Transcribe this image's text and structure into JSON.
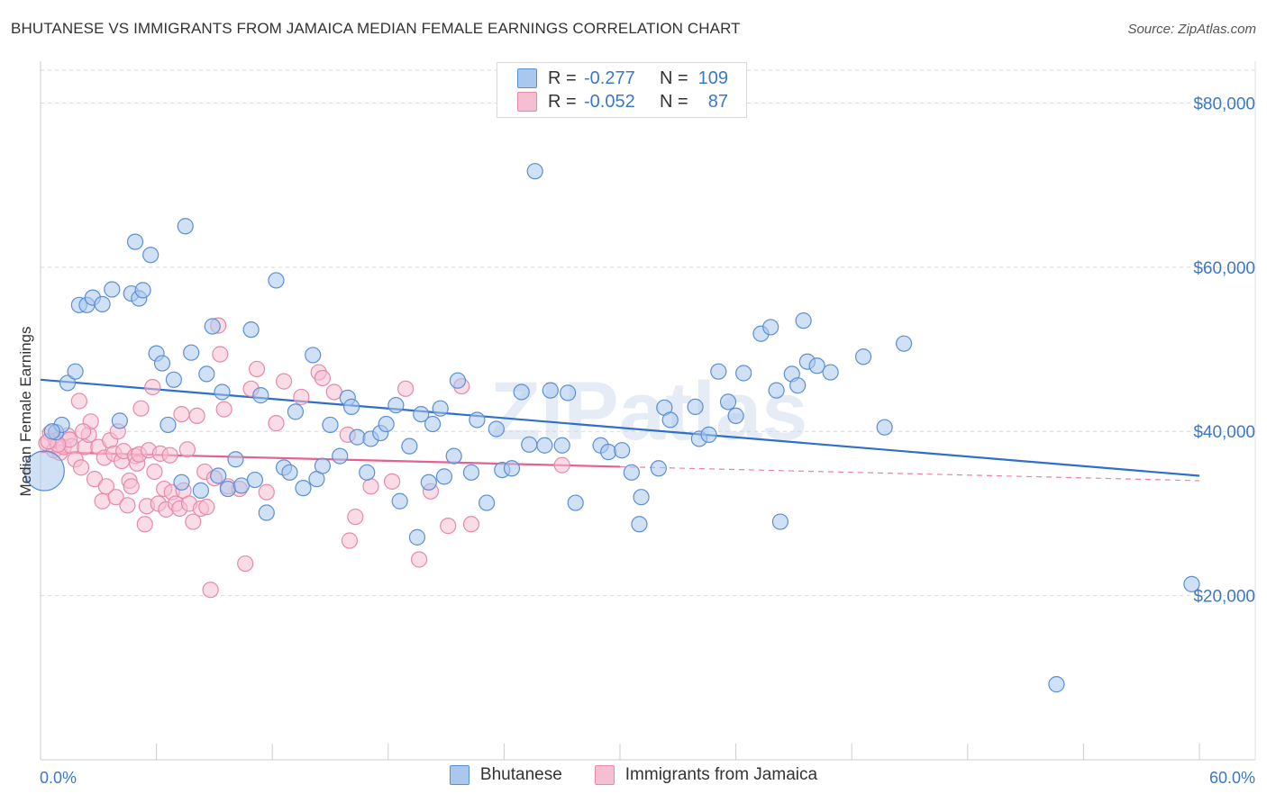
{
  "title": "BHUTANESE VS IMMIGRANTS FROM JAMAICA MEDIAN FEMALE EARNINGS CORRELATION CHART",
  "source": "Source: ZipAtlas.com",
  "legend": {
    "rows": [
      {
        "r_label": "R =",
        "r_value": "-0.277",
        "n_label": "N =",
        "n_value": "109"
      },
      {
        "r_label": "R =",
        "r_value": "-0.052",
        "n_label": "N =",
        "n_value": "87"
      }
    ]
  },
  "bottom_legend": [
    "Bhutanese",
    "Immigrants from Jamaica"
  ],
  "colors": {
    "blue_fill": "#aac8ee",
    "blue_stroke": "#5b8fd4",
    "blue_line": "#2f6fcc",
    "pink_fill": "#f6bfd1",
    "pink_stroke": "#e889a8",
    "pink_line": "#e8608f",
    "axis_text": "#3a78c9",
    "grid": "#d9d9d9"
  },
  "chart_data": {
    "type": "scatter",
    "title": "BHUTANESE VS IMMIGRANTS FROM JAMAICA MEDIAN FEMALE EARNINGS CORRELATION CHART",
    "xlabel": "",
    "ylabel": "Median Female Earnings",
    "xlim": [
      0,
      60
    ],
    "ylim": [
      0,
      84000
    ],
    "x_tick_labels": [
      "0.0%",
      "60.0%"
    ],
    "y_ticks": [
      20000,
      40000,
      60000,
      80000
    ],
    "y_tick_labels": [
      "$20,000",
      "$40,000",
      "$60,000",
      "$80,000"
    ],
    "grid": "horizontal dashed",
    "legend_position": "top-center",
    "watermark": "ZIPatlas",
    "series": [
      {
        "name": "Bhutanese",
        "trend": {
          "x": [
            0,
            60
          ],
          "y": [
            46300,
            34600
          ]
        },
        "points": [
          [
            0.2,
            35200,
            "big"
          ],
          [
            0.8,
            39900
          ],
          [
            1.1,
            40800
          ],
          [
            1.4,
            45900
          ],
          [
            1.8,
            47300
          ],
          [
            2.0,
            55400
          ],
          [
            2.4,
            55400
          ],
          [
            2.7,
            56300
          ],
          [
            3.2,
            55500
          ],
          [
            3.7,
            57300
          ],
          [
            4.1,
            41300
          ],
          [
            4.7,
            56800
          ],
          [
            4.9,
            63100
          ],
          [
            5.1,
            56200
          ],
          [
            5.3,
            57200
          ],
          [
            5.7,
            61500
          ],
          [
            6.0,
            49500
          ],
          [
            6.3,
            48300
          ],
          [
            6.6,
            40800
          ],
          [
            6.9,
            46300
          ],
          [
            7.3,
            33800
          ],
          [
            7.5,
            65000
          ],
          [
            7.8,
            49600
          ],
          [
            8.3,
            32800
          ],
          [
            8.6,
            47000
          ],
          [
            8.9,
            52800
          ],
          [
            9.2,
            34600
          ],
          [
            9.4,
            44800
          ],
          [
            9.7,
            33000
          ],
          [
            10.1,
            36600
          ],
          [
            10.4,
            33400
          ],
          [
            10.9,
            52400
          ],
          [
            11.1,
            34100
          ],
          [
            11.4,
            44400
          ],
          [
            11.7,
            30100
          ],
          [
            12.2,
            58400
          ],
          [
            12.6,
            35600
          ],
          [
            12.9,
            35000
          ],
          [
            13.2,
            42400
          ],
          [
            13.6,
            33100
          ],
          [
            14.1,
            49300
          ],
          [
            14.3,
            34200
          ],
          [
            14.6,
            35800
          ],
          [
            15.0,
            40800
          ],
          [
            15.5,
            37000
          ],
          [
            15.9,
            44100
          ],
          [
            16.1,
            43000
          ],
          [
            16.4,
            39300
          ],
          [
            16.9,
            35000
          ],
          [
            17.1,
            39100
          ],
          [
            17.6,
            39800
          ],
          [
            17.9,
            40900
          ],
          [
            18.4,
            43200
          ],
          [
            18.6,
            31500
          ],
          [
            19.1,
            38200
          ],
          [
            19.5,
            27100
          ],
          [
            19.7,
            42100
          ],
          [
            20.1,
            33800
          ],
          [
            20.3,
            40900
          ],
          [
            20.7,
            42800
          ],
          [
            20.9,
            34500
          ],
          [
            21.4,
            37000
          ],
          [
            21.6,
            46200
          ],
          [
            22.3,
            35000
          ],
          [
            22.6,
            41400
          ],
          [
            23.1,
            31300
          ],
          [
            23.6,
            40300
          ],
          [
            23.9,
            35300
          ],
          [
            24.4,
            35500
          ],
          [
            24.9,
            44800
          ],
          [
            25.3,
            38400
          ],
          [
            25.6,
            71700
          ],
          [
            26.4,
            45000
          ],
          [
            26.1,
            38300
          ],
          [
            27.0,
            38300
          ],
          [
            27.3,
            44700
          ],
          [
            27.7,
            31300
          ],
          [
            29.0,
            38300
          ],
          [
            29.4,
            37500
          ],
          [
            30.1,
            37700
          ],
          [
            30.6,
            35000
          ],
          [
            31.0,
            28700
          ],
          [
            31.1,
            32000
          ],
          [
            32.0,
            35500
          ],
          [
            32.3,
            42900
          ],
          [
            32.6,
            41400
          ],
          [
            33.9,
            43000
          ],
          [
            34.1,
            39100
          ],
          [
            34.6,
            39600
          ],
          [
            35.1,
            47300
          ],
          [
            35.6,
            43600
          ],
          [
            36.0,
            41900
          ],
          [
            36.4,
            47100
          ],
          [
            37.3,
            51900
          ],
          [
            37.8,
            52700
          ],
          [
            38.1,
            45000
          ],
          [
            38.3,
            29000
          ],
          [
            38.9,
            47000
          ],
          [
            39.2,
            45600
          ],
          [
            39.5,
            53500
          ],
          [
            39.7,
            48500
          ],
          [
            40.2,
            48000
          ],
          [
            40.9,
            47200
          ],
          [
            42.6,
            49100
          ],
          [
            43.7,
            40500
          ],
          [
            44.7,
            50700
          ],
          [
            52.6,
            9200
          ],
          [
            59.6,
            21400
          ],
          [
            0.6,
            40000
          ]
        ]
      },
      {
        "name": "Immigrants from Jamaica",
        "trend": {
          "x": [
            0,
            30
          ],
          "y": [
            37500,
            35700
          ]
        },
        "trend_dashed": {
          "x": [
            30,
            60
          ],
          "y": [
            35700,
            34000
          ]
        },
        "points": [
          [
            0.3,
            38600
          ],
          [
            0.5,
            39800
          ],
          [
            0.7,
            37700
          ],
          [
            0.8,
            38900
          ],
          [
            1.0,
            37400
          ],
          [
            1.2,
            38100
          ],
          [
            1.4,
            39500
          ],
          [
            1.6,
            38200
          ],
          [
            1.8,
            36600
          ],
          [
            2.0,
            43700
          ],
          [
            2.1,
            35600
          ],
          [
            2.3,
            38100
          ],
          [
            2.5,
            39600
          ],
          [
            2.6,
            41200
          ],
          [
            2.8,
            34200
          ],
          [
            3.0,
            38100
          ],
          [
            3.2,
            31500
          ],
          [
            3.3,
            36800
          ],
          [
            3.4,
            33300
          ],
          [
            3.6,
            38900
          ],
          [
            3.8,
            37300
          ],
          [
            3.9,
            32000
          ],
          [
            4.0,
            40000
          ],
          [
            4.2,
            36400
          ],
          [
            4.3,
            37600
          ],
          [
            4.5,
            31000
          ],
          [
            4.6,
            34000
          ],
          [
            4.7,
            33300
          ],
          [
            4.9,
            37000
          ],
          [
            5.0,
            36100
          ],
          [
            5.1,
            37200
          ],
          [
            5.2,
            42800
          ],
          [
            5.4,
            28700
          ],
          [
            5.5,
            30900
          ],
          [
            5.6,
            37700
          ],
          [
            5.8,
            45400
          ],
          [
            5.9,
            35100
          ],
          [
            6.1,
            31200
          ],
          [
            6.2,
            37300
          ],
          [
            6.4,
            33000
          ],
          [
            6.5,
            30500
          ],
          [
            6.7,
            37100
          ],
          [
            6.8,
            32600
          ],
          [
            7.0,
            31200
          ],
          [
            7.2,
            30600
          ],
          [
            7.3,
            42100
          ],
          [
            7.4,
            32800
          ],
          [
            7.6,
            37800
          ],
          [
            7.7,
            31200
          ],
          [
            7.9,
            29000
          ],
          [
            8.1,
            41900
          ],
          [
            8.3,
            30600
          ],
          [
            8.5,
            35100
          ],
          [
            8.6,
            30800
          ],
          [
            8.8,
            20700
          ],
          [
            9.0,
            34300
          ],
          [
            9.2,
            52900
          ],
          [
            9.3,
            49400
          ],
          [
            9.5,
            42700
          ],
          [
            9.7,
            33300
          ],
          [
            10.3,
            33000
          ],
          [
            10.6,
            23900
          ],
          [
            10.9,
            45200
          ],
          [
            11.2,
            47600
          ],
          [
            11.7,
            32600
          ],
          [
            12.2,
            41000
          ],
          [
            12.6,
            46100
          ],
          [
            13.5,
            44200
          ],
          [
            14.4,
            47200
          ],
          [
            14.6,
            46500
          ],
          [
            15.2,
            44800
          ],
          [
            15.9,
            39600
          ],
          [
            16.0,
            26700
          ],
          [
            16.3,
            29600
          ],
          [
            17.1,
            33300
          ],
          [
            18.2,
            33900
          ],
          [
            18.9,
            45200
          ],
          [
            19.6,
            24400
          ],
          [
            20.2,
            32700
          ],
          [
            21.1,
            28500
          ],
          [
            21.8,
            45500
          ],
          [
            22.3,
            28700
          ],
          [
            2.2,
            40000
          ],
          [
            1.5,
            39000
          ],
          [
            0.9,
            38400
          ],
          [
            0.4,
            38800
          ],
          [
            27.0,
            35900
          ]
        ]
      }
    ]
  }
}
